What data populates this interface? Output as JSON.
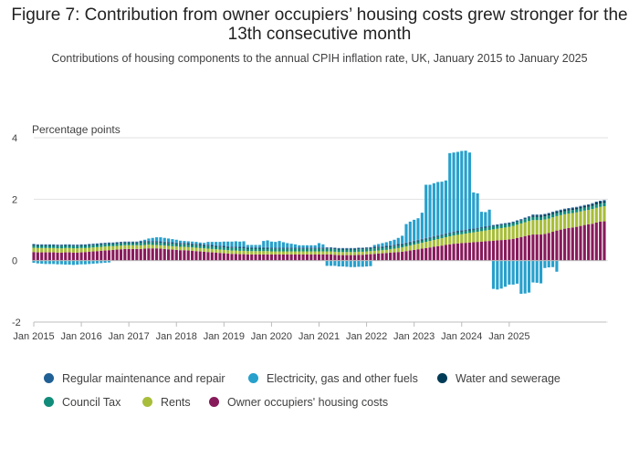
{
  "title": "Figure 7: Contribution from owner occupiers’ housing costs grew stronger for the 13th consecutive month",
  "subtitle": "Contributions of housing components to the annual CPIH inflation rate, UK, January 2015 to January 2025",
  "chart_data": {
    "type": "bar",
    "stacked": true,
    "ylabel": "Percentage points",
    "ylim": [
      -2,
      4
    ],
    "yticks": [
      -2,
      0,
      2,
      4
    ],
    "xtick_labels": [
      "Jan 2015",
      "Jan 2016",
      "Jan 2017",
      "Jan 2018",
      "Jan 2019",
      "Jan 2020",
      "Jan 2021",
      "Jan 2022",
      "Jan 2023",
      "Jan 2024",
      "Jan 2025"
    ],
    "grid": true,
    "legend_position": "bottom",
    "x_start": "Jan 2015",
    "x_end": "Jan 2025",
    "series": [
      {
        "name": "Owner occupiers' housing costs",
        "color": "#871A5B",
        "values": [
          0.28,
          0.27,
          0.27,
          0.27,
          0.27,
          0.27,
          0.26,
          0.26,
          0.27,
          0.27,
          0.26,
          0.26,
          0.27,
          0.28,
          0.29,
          0.3,
          0.31,
          0.32,
          0.33,
          0.34,
          0.35,
          0.36,
          0.37,
          0.38,
          0.38,
          0.38,
          0.38,
          0.38,
          0.39,
          0.4,
          0.4,
          0.4,
          0.39,
          0.38,
          0.37,
          0.36,
          0.35,
          0.34,
          0.34,
          0.33,
          0.32,
          0.31,
          0.3,
          0.29,
          0.28,
          0.27,
          0.26,
          0.25,
          0.24,
          0.23,
          0.22,
          0.22,
          0.21,
          0.21,
          0.2,
          0.2,
          0.2,
          0.2,
          0.2,
          0.2,
          0.2,
          0.2,
          0.2,
          0.2,
          0.2,
          0.2,
          0.2,
          0.2,
          0.2,
          0.2,
          0.2,
          0.2,
          0.2,
          0.2,
          0.2,
          0.2,
          0.19,
          0.18,
          0.18,
          0.18,
          0.18,
          0.18,
          0.19,
          0.19,
          0.2,
          0.21,
          0.22,
          0.23,
          0.24,
          0.25,
          0.26,
          0.27,
          0.28,
          0.29,
          0.31,
          0.33,
          0.35,
          0.37,
          0.39,
          0.41,
          0.43,
          0.45,
          0.47,
          0.49,
          0.51,
          0.53,
          0.55,
          0.56,
          0.57,
          0.58,
          0.59,
          0.6,
          0.61,
          0.62,
          0.63,
          0.64,
          0.65,
          0.66,
          0.67,
          0.68,
          0.69,
          0.71,
          0.74,
          0.77,
          0.8,
          0.83,
          0.85,
          0.85,
          0.85,
          0.87,
          0.9,
          0.94,
          0.98,
          1.01,
          1.04,
          1.06,
          1.08,
          1.1,
          1.13,
          1.16,
          1.18,
          1.2,
          1.24,
          1.27,
          1.28
        ]
      },
      {
        "name": "Rents",
        "color": "#A8BD3A",
        "values": [
          0.14,
          0.14,
          0.14,
          0.14,
          0.14,
          0.14,
          0.14,
          0.14,
          0.14,
          0.14,
          0.14,
          0.14,
          0.14,
          0.13,
          0.13,
          0.13,
          0.13,
          0.13,
          0.13,
          0.13,
          0.12,
          0.12,
          0.12,
          0.12,
          0.12,
          0.12,
          0.12,
          0.12,
          0.12,
          0.12,
          0.11,
          0.11,
          0.11,
          0.11,
          0.11,
          0.11,
          0.11,
          0.11,
          0.11,
          0.11,
          0.11,
          0.11,
          0.11,
          0.11,
          0.11,
          0.11,
          0.11,
          0.11,
          0.11,
          0.11,
          0.11,
          0.11,
          0.11,
          0.11,
          0.11,
          0.11,
          0.11,
          0.11,
          0.11,
          0.11,
          0.1,
          0.1,
          0.1,
          0.1,
          0.1,
          0.1,
          0.1,
          0.1,
          0.1,
          0.1,
          0.1,
          0.1,
          0.1,
          0.1,
          0.1,
          0.1,
          0.1,
          0.1,
          0.1,
          0.1,
          0.1,
          0.1,
          0.1,
          0.1,
          0.1,
          0.1,
          0.1,
          0.1,
          0.1,
          0.1,
          0.11,
          0.12,
          0.13,
          0.14,
          0.15,
          0.16,
          0.17,
          0.18,
          0.19,
          0.2,
          0.21,
          0.22,
          0.23,
          0.24,
          0.25,
          0.26,
          0.27,
          0.28,
          0.29,
          0.3,
          0.31,
          0.32,
          0.33,
          0.34,
          0.35,
          0.36,
          0.37,
          0.38,
          0.39,
          0.4,
          0.41,
          0.42,
          0.43,
          0.44,
          0.45,
          0.46,
          0.47,
          0.47,
          0.47,
          0.47,
          0.47,
          0.47,
          0.47,
          0.47,
          0.47,
          0.47,
          0.47,
          0.47,
          0.47,
          0.47,
          0.47,
          0.48,
          0.48,
          0.48,
          0.49
        ]
      },
      {
        "name": "Council Tax",
        "color": "#118C7B",
        "values": [
          0.07,
          0.07,
          0.07,
          0.07,
          0.07,
          0.07,
          0.07,
          0.07,
          0.07,
          0.07,
          0.07,
          0.07,
          0.07,
          0.07,
          0.07,
          0.07,
          0.07,
          0.07,
          0.07,
          0.07,
          0.07,
          0.07,
          0.07,
          0.07,
          0.07,
          0.07,
          0.07,
          0.08,
          0.08,
          0.08,
          0.08,
          0.08,
          0.08,
          0.08,
          0.08,
          0.08,
          0.08,
          0.08,
          0.08,
          0.08,
          0.08,
          0.08,
          0.08,
          0.08,
          0.08,
          0.08,
          0.08,
          0.08,
          0.08,
          0.08,
          0.08,
          0.08,
          0.08,
          0.08,
          0.08,
          0.08,
          0.08,
          0.08,
          0.08,
          0.08,
          0.08,
          0.08,
          0.08,
          0.08,
          0.08,
          0.08,
          0.08,
          0.08,
          0.08,
          0.08,
          0.08,
          0.08,
          0.08,
          0.08,
          0.08,
          0.08,
          0.08,
          0.08,
          0.08,
          0.08,
          0.08,
          0.08,
          0.08,
          0.08,
          0.08,
          0.08,
          0.08,
          0.08,
          0.08,
          0.08,
          0.08,
          0.08,
          0.08,
          0.08,
          0.08,
          0.08,
          0.08,
          0.08,
          0.08,
          0.08,
          0.08,
          0.08,
          0.08,
          0.08,
          0.08,
          0.08,
          0.08,
          0.08,
          0.08,
          0.08,
          0.08,
          0.08,
          0.08,
          0.09,
          0.09,
          0.09,
          0.09,
          0.09,
          0.09,
          0.09,
          0.09,
          0.09,
          0.09,
          0.09,
          0.1,
          0.1,
          0.1,
          0.1,
          0.1,
          0.1,
          0.1,
          0.1,
          0.1,
          0.1,
          0.1,
          0.1,
          0.1,
          0.1,
          0.1,
          0.1,
          0.1,
          0.1,
          0.11,
          0.11,
          0.11
        ]
      },
      {
        "name": "Water and sewerage",
        "color": "#003C57",
        "values": [
          0.02,
          0.02,
          0.02,
          0.02,
          0.02,
          0.02,
          0.02,
          0.02,
          0.02,
          0.02,
          0.02,
          0.02,
          0.02,
          0.02,
          0.02,
          0.02,
          0.02,
          0.02,
          0.02,
          0.02,
          0.02,
          0.02,
          0.02,
          0.02,
          0.02,
          0.02,
          0.02,
          0.02,
          0.02,
          0.02,
          0.02,
          0.02,
          0.02,
          0.02,
          0.02,
          0.02,
          0.02,
          0.02,
          0.02,
          0.02,
          0.02,
          0.02,
          0.02,
          0.02,
          0.02,
          0.02,
          0.02,
          0.02,
          0.02,
          0.02,
          0.02,
          0.02,
          0.02,
          0.02,
          0.02,
          0.02,
          0.02,
          0.02,
          0.02,
          0.02,
          0.02,
          0.02,
          0.02,
          0.02,
          0.02,
          0.02,
          0.02,
          0.02,
          0.02,
          0.02,
          0.02,
          0.02,
          0.02,
          0.02,
          0.02,
          0.02,
          0.02,
          0.02,
          0.02,
          0.02,
          0.02,
          0.02,
          0.02,
          0.02,
          0.02,
          0.02,
          0.02,
          0.02,
          0.02,
          0.02,
          0.02,
          0.02,
          0.02,
          0.02,
          0.02,
          0.02,
          0.02,
          0.02,
          0.02,
          0.02,
          0.02,
          0.02,
          0.02,
          0.02,
          0.02,
          0.02,
          0.02,
          0.02,
          0.02,
          0.02,
          0.02,
          0.02,
          0.02,
          0.02,
          0.02,
          0.02,
          0.02,
          0.02,
          0.02,
          0.02,
          0.02,
          0.02,
          0.02,
          0.02,
          0.02,
          0.02,
          0.05,
          0.05,
          0.05,
          0.05,
          0.05,
          0.05,
          0.05,
          0.05,
          0.05,
          0.05,
          0.05,
          0.05,
          0.05,
          0.05,
          0.05,
          0.06,
          0.06,
          0.06,
          0.06
        ]
      },
      {
        "name": "Regular maintenance and repair",
        "color": "#206095",
        "values": [
          0.03,
          0.03,
          0.03,
          0.03,
          0.03,
          0.03,
          0.03,
          0.03,
          0.03,
          0.03,
          0.03,
          0.03,
          0.03,
          0.03,
          0.03,
          0.03,
          0.03,
          0.03,
          0.03,
          0.03,
          0.03,
          0.03,
          0.03,
          0.03,
          0.03,
          0.03,
          0.03,
          0.03,
          0.03,
          0.03,
          0.03,
          0.03,
          0.03,
          0.03,
          0.03,
          0.03,
          0.03,
          0.03,
          0.03,
          0.03,
          0.03,
          0.03,
          0.03,
          0.03,
          0.03,
          0.03,
          0.03,
          0.03,
          0.03,
          0.03,
          0.03,
          0.03,
          0.03,
          0.03,
          0.03,
          0.03,
          0.03,
          0.03,
          0.03,
          0.03,
          0.03,
          0.03,
          0.03,
          0.03,
          0.03,
          0.03,
          0.03,
          0.03,
          0.03,
          0.03,
          0.03,
          0.03,
          0.03,
          0.03,
          0.03,
          0.03,
          0.03,
          0.03,
          0.03,
          0.03,
          0.03,
          0.03,
          0.03,
          0.03,
          0.03,
          0.03,
          0.03,
          0.03,
          0.03,
          0.03,
          0.03,
          0.03,
          0.03,
          0.03,
          0.03,
          0.03,
          0.03,
          0.03,
          0.03,
          0.03,
          0.03,
          0.03,
          0.03,
          0.03,
          0.03,
          0.03,
          0.03,
          0.03,
          0.03,
          0.03,
          0.03,
          0.03,
          0.03,
          0.03,
          0.03,
          0.03,
          0.03,
          0.03,
          0.03,
          0.03,
          0.03,
          0.03,
          0.03,
          0.03,
          0.03,
          0.03,
          0.03,
          0.03,
          0.03,
          0.03,
          0.03,
          0.03,
          0.03,
          0.03,
          0.03,
          0.03,
          0.03,
          0.03,
          0.03,
          0.03,
          0.03,
          0.03,
          0.03,
          0.03,
          0.03
        ]
      },
      {
        "name": "Electricity, gas and other fuels",
        "color": "#27A0CC",
        "values": [
          -0.07,
          -0.09,
          -0.1,
          -0.11,
          -0.11,
          -0.11,
          -0.12,
          -0.12,
          -0.13,
          -0.13,
          -0.14,
          -0.13,
          -0.12,
          -0.12,
          -0.11,
          -0.1,
          -0.09,
          -0.08,
          -0.07,
          -0.06,
          0.0,
          0.0,
          0.0,
          0.0,
          0.0,
          0.0,
          0.0,
          0.02,
          0.04,
          0.07,
          0.1,
          0.12,
          0.13,
          0.12,
          0.11,
          0.1,
          0.09,
          0.07,
          0.06,
          0.06,
          0.06,
          0.06,
          0.05,
          0.05,
          0.09,
          0.1,
          0.11,
          0.12,
          0.14,
          0.15,
          0.16,
          0.17,
          0.17,
          0.18,
          0.07,
          0.07,
          0.07,
          0.07,
          0.2,
          0.22,
          0.19,
          0.18,
          0.21,
          0.17,
          0.14,
          0.12,
          0.1,
          0.07,
          0.07,
          0.07,
          0.07,
          0.07,
          0.14,
          0.1,
          -0.17,
          -0.17,
          -0.17,
          -0.19,
          -0.19,
          -0.2,
          -0.21,
          -0.21,
          -0.2,
          -0.2,
          -0.19,
          -0.18,
          0.06,
          0.08,
          0.1,
          0.12,
          0.14,
          0.16,
          0.2,
          0.25,
          0.6,
          0.65,
          0.68,
          0.7,
          0.85,
          1.73,
          1.7,
          1.72,
          1.73,
          1.71,
          1.72,
          2.58,
          2.57,
          2.57,
          2.58,
          2.57,
          2.49,
          1.17,
          1.12,
          0.49,
          0.46,
          0.52,
          -0.92,
          -0.94,
          -0.91,
          -0.85,
          -0.78,
          -0.78,
          -0.75,
          -1.08,
          -1.07,
          -1.04,
          -0.71,
          -0.72,
          -0.74,
          -0.24,
          -0.22,
          -0.21,
          -0.36
        ]
      }
    ]
  },
  "legend": [
    {
      "label": "Regular maintenance and repair",
      "color": "#206095"
    },
    {
      "label": "Electricity, gas and other fuels",
      "color": "#27A0CC"
    },
    {
      "label": "Water and sewerage",
      "color": "#003C57"
    },
    {
      "label": "Council Tax",
      "color": "#118C7B"
    },
    {
      "label": "Rents",
      "color": "#A8BD3A"
    },
    {
      "label": "Owner occupiers' housing costs",
      "color": "#871A5B"
    }
  ]
}
